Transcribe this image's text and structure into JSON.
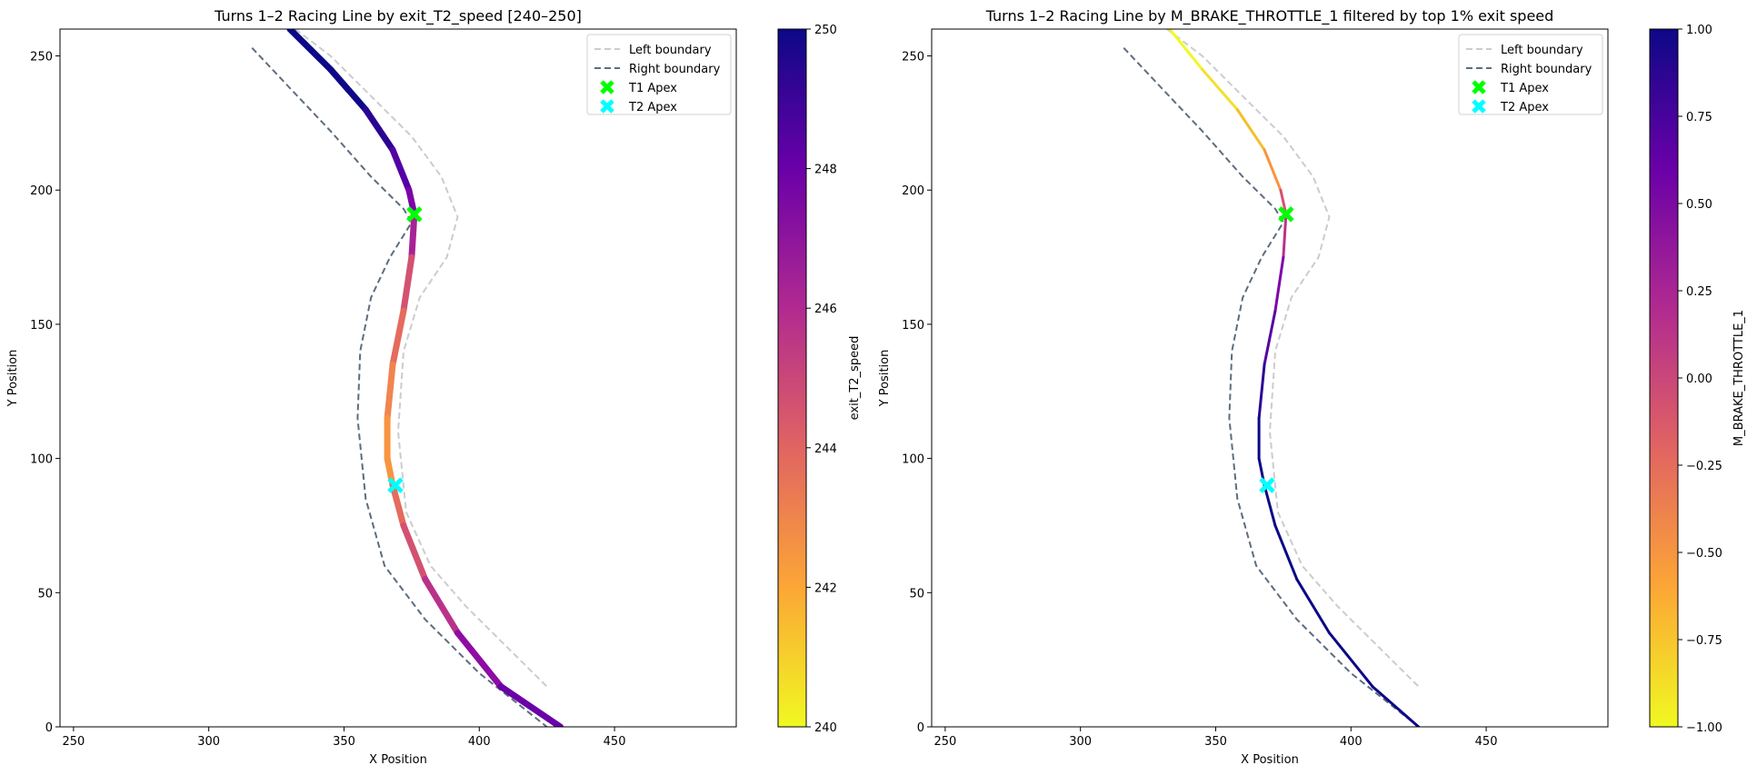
{
  "chart_data": [
    {
      "type": "line",
      "title": "Turns 1–2 Racing Line by exit_T2_speed [240–250]",
      "xlabel": "X Position",
      "ylabel": "Y Position",
      "xlim": [
        245,
        495
      ],
      "ylim": [
        0,
        260
      ],
      "xticks": [
        "250",
        "300",
        "350",
        "400",
        "450"
      ],
      "yticks": [
        "0",
        "50",
        "100",
        "150",
        "200",
        "250"
      ],
      "grid": false,
      "legend_position": "top-right",
      "legend": [
        "Left boundary",
        "Right boundary",
        "T1 Apex",
        "T2 Apex"
      ],
      "colorbar": {
        "label": "exit_T2_speed",
        "range": [
          240,
          250
        ],
        "ticks": [
          "240",
          "242",
          "244",
          "246",
          "248",
          "250"
        ],
        "colormap": "plasma_r"
      },
      "series": [
        {
          "name": "Left boundary",
          "style": "dashed",
          "color": "#cccccc",
          "x": [
            332,
            345,
            360,
            375,
            386,
            392,
            388,
            378,
            372,
            370,
            373,
            382,
            395,
            410,
            425
          ],
          "y": [
            260,
            250,
            235,
            220,
            205,
            190,
            175,
            160,
            140,
            110,
            80,
            60,
            45,
            30,
            15
          ]
        },
        {
          "name": "Right boundary",
          "style": "dashed",
          "color": "#5d6d7e",
          "x": [
            316,
            330,
            345,
            360,
            372,
            375,
            367,
            360,
            356,
            355,
            358,
            365,
            380,
            400,
            425
          ],
          "y": [
            253,
            238,
            222,
            205,
            193,
            188,
            175,
            160,
            140,
            115,
            85,
            60,
            40,
            20,
            0
          ]
        },
        {
          "name": "T1 Apex",
          "type": "marker",
          "color": "#00ff00",
          "x": [
            376
          ],
          "y": [
            191
          ]
        },
        {
          "name": "T2 Apex",
          "type": "marker",
          "color": "#00ffff",
          "x": [
            369
          ],
          "y": [
            90
          ]
        }
      ],
      "racing_line": {
        "x": [
          330,
          345,
          358,
          368,
          374,
          376,
          375,
          372,
          368,
          366,
          366,
          368,
          372,
          380,
          392,
          408,
          430
        ],
        "y": [
          260,
          245,
          230,
          215,
          200,
          191,
          175,
          155,
          135,
          115,
          100,
          90,
          75,
          55,
          35,
          15,
          0
        ],
        "colors": [
          "#0d0887",
          "#0d0887",
          "#2a0593",
          "#5402a3",
          "#7e03a8",
          "#a82296",
          "#d35171",
          "#e56b5d",
          "#f0854f",
          "#f89540",
          "#f89540",
          "#e56b5d",
          "#d35171",
          "#b93289",
          "#8e0ca4",
          "#6a00a8",
          "#f89540"
        ]
      }
    },
    {
      "type": "line",
      "title": "Turns 1–2 Racing Line by M_BRAKE_THROTTLE_1 filtered by top 1% exit speed",
      "xlabel": "X Position",
      "ylabel": "Y Position",
      "xlim": [
        245,
        495
      ],
      "ylim": [
        0,
        260
      ],
      "xticks": [
        "250",
        "300",
        "350",
        "400",
        "450"
      ],
      "yticks": [
        "0",
        "50",
        "100",
        "150",
        "200",
        "250"
      ],
      "grid": false,
      "legend_position": "top-right",
      "legend": [
        "Left boundary",
        "Right boundary",
        "T1 Apex",
        "T2 Apex"
      ],
      "colorbar": {
        "label": "M_BRAKE_THROTTLE_1",
        "range": [
          -1.0,
          1.0
        ],
        "ticks": [
          "−1.00",
          "−0.75",
          "−0.50",
          "−0.25",
          "0.00",
          "0.25",
          "0.50",
          "0.75",
          "1.00"
        ],
        "colormap": "plasma_r"
      },
      "series": [
        {
          "name": "Left boundary",
          "style": "dashed",
          "color": "#cccccc",
          "x": [
            332,
            345,
            360,
            375,
            386,
            392,
            388,
            378,
            372,
            370,
            373,
            382,
            395,
            410,
            425
          ],
          "y": [
            260,
            250,
            235,
            220,
            205,
            190,
            175,
            160,
            140,
            110,
            80,
            60,
            45,
            30,
            15
          ]
        },
        {
          "name": "Right boundary",
          "style": "dashed",
          "color": "#5d6d7e",
          "x": [
            316,
            330,
            345,
            360,
            372,
            375,
            367,
            360,
            356,
            355,
            358,
            365,
            380,
            400,
            425
          ],
          "y": [
            253,
            238,
            222,
            205,
            193,
            188,
            175,
            160,
            140,
            115,
            85,
            60,
            40,
            20,
            0
          ]
        },
        {
          "name": "T1 Apex",
          "type": "marker",
          "color": "#00ff00",
          "x": [
            376
          ],
          "y": [
            191
          ]
        },
        {
          "name": "T2 Apex",
          "type": "marker",
          "color": "#00ffff",
          "x": [
            369
          ],
          "y": [
            90
          ]
        }
      ],
      "racing_line": {
        "x": [
          333,
          345,
          358,
          368,
          374,
          376,
          375,
          372,
          368,
          366,
          366,
          368,
          372,
          380,
          392,
          408,
          425
        ],
        "y": [
          260,
          245,
          230,
          215,
          200,
          191,
          175,
          155,
          135,
          115,
          100,
          90,
          75,
          55,
          35,
          15,
          0
        ],
        "colors": [
          "#f0f921",
          "#f3e02a",
          "#f5be2b",
          "#f89540",
          "#d35171",
          "#b93289",
          "#7e03a8",
          "#5402a3",
          "#2a0593",
          "#0d0887",
          "#0d0887",
          "#0d0887",
          "#0d0887",
          "#0d0887",
          "#0d0887",
          "#0d0887",
          "#0d0887"
        ]
      }
    }
  ]
}
